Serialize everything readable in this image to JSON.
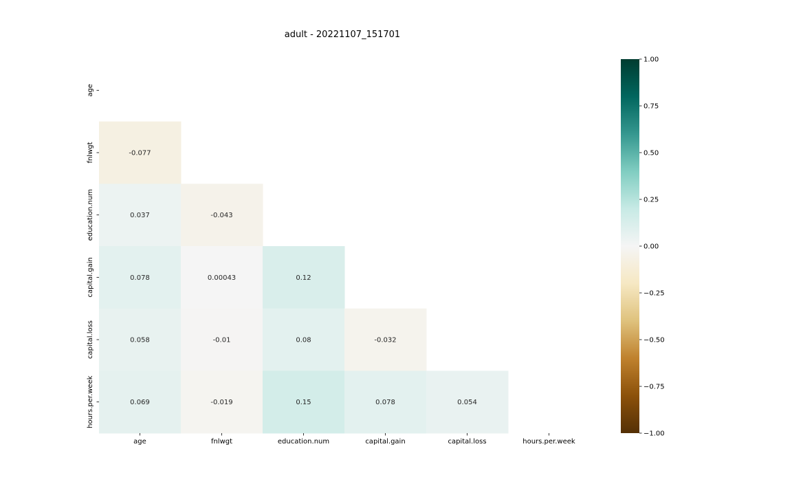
{
  "chart_data": {
    "type": "heatmap",
    "title": "adult - 20221107_151701",
    "variables": [
      "age",
      "fnlwgt",
      "education.num",
      "capital.gain",
      "capital.loss",
      "hours.per.week"
    ],
    "mask": "upper-triangle-including-diagonal",
    "cells": [
      {
        "row": "fnlwgt",
        "col": "age",
        "value": -0.077,
        "label": "-0.077"
      },
      {
        "row": "education.num",
        "col": "age",
        "value": 0.037,
        "label": "0.037"
      },
      {
        "row": "education.num",
        "col": "fnlwgt",
        "value": -0.043,
        "label": "-0.043"
      },
      {
        "row": "capital.gain",
        "col": "age",
        "value": 0.078,
        "label": "0.078"
      },
      {
        "row": "capital.gain",
        "col": "fnlwgt",
        "value": 0.00043,
        "label": "0.00043"
      },
      {
        "row": "capital.gain",
        "col": "education.num",
        "value": 0.12,
        "label": "0.12"
      },
      {
        "row": "capital.loss",
        "col": "age",
        "value": 0.058,
        "label": "0.058"
      },
      {
        "row": "capital.loss",
        "col": "fnlwgt",
        "value": -0.01,
        "label": "-0.01"
      },
      {
        "row": "capital.loss",
        "col": "education.num",
        "value": 0.08,
        "label": "0.08"
      },
      {
        "row": "capital.loss",
        "col": "capital.gain",
        "value": -0.032,
        "label": "-0.032"
      },
      {
        "row": "hours.per.week",
        "col": "age",
        "value": 0.069,
        "label": "0.069"
      },
      {
        "row": "hours.per.week",
        "col": "fnlwgt",
        "value": -0.019,
        "label": "-0.019"
      },
      {
        "row": "hours.per.week",
        "col": "education.num",
        "value": 0.15,
        "label": "0.15"
      },
      {
        "row": "hours.per.week",
        "col": "capital.gain",
        "value": 0.078,
        "label": "0.078"
      },
      {
        "row": "hours.per.week",
        "col": "capital.loss",
        "value": 0.054,
        "label": "0.054"
      }
    ],
    "colorbar": {
      "colormap": "BrBG",
      "vmin": -1.0,
      "vmax": 1.0,
      "ticks": [
        1.0,
        0.75,
        0.5,
        0.25,
        0.0,
        -0.25,
        -0.5,
        -0.75,
        -1.0
      ],
      "tick_labels": [
        "1.00",
        "0.75",
        "0.50",
        "0.25",
        "0.00",
        "−0.25",
        "−0.50",
        "−0.75",
        "−1.00"
      ]
    },
    "colormap_stops": [
      {
        "v": -1.0,
        "color": "#543005"
      },
      {
        "v": -0.8,
        "color": "#8c510a"
      },
      {
        "v": -0.6,
        "color": "#bf812d"
      },
      {
        "v": -0.4,
        "color": "#dfc27d"
      },
      {
        "v": -0.2,
        "color": "#f6e8c3"
      },
      {
        "v": 0.0,
        "color": "#f5f5f5"
      },
      {
        "v": 0.2,
        "color": "#c7eae5"
      },
      {
        "v": 0.4,
        "color": "#80cdc1"
      },
      {
        "v": 0.6,
        "color": "#35978f"
      },
      {
        "v": 0.8,
        "color": "#01665e"
      },
      {
        "v": 1.0,
        "color": "#003c30"
      }
    ],
    "grid": false,
    "legend": "colorbar-right"
  }
}
